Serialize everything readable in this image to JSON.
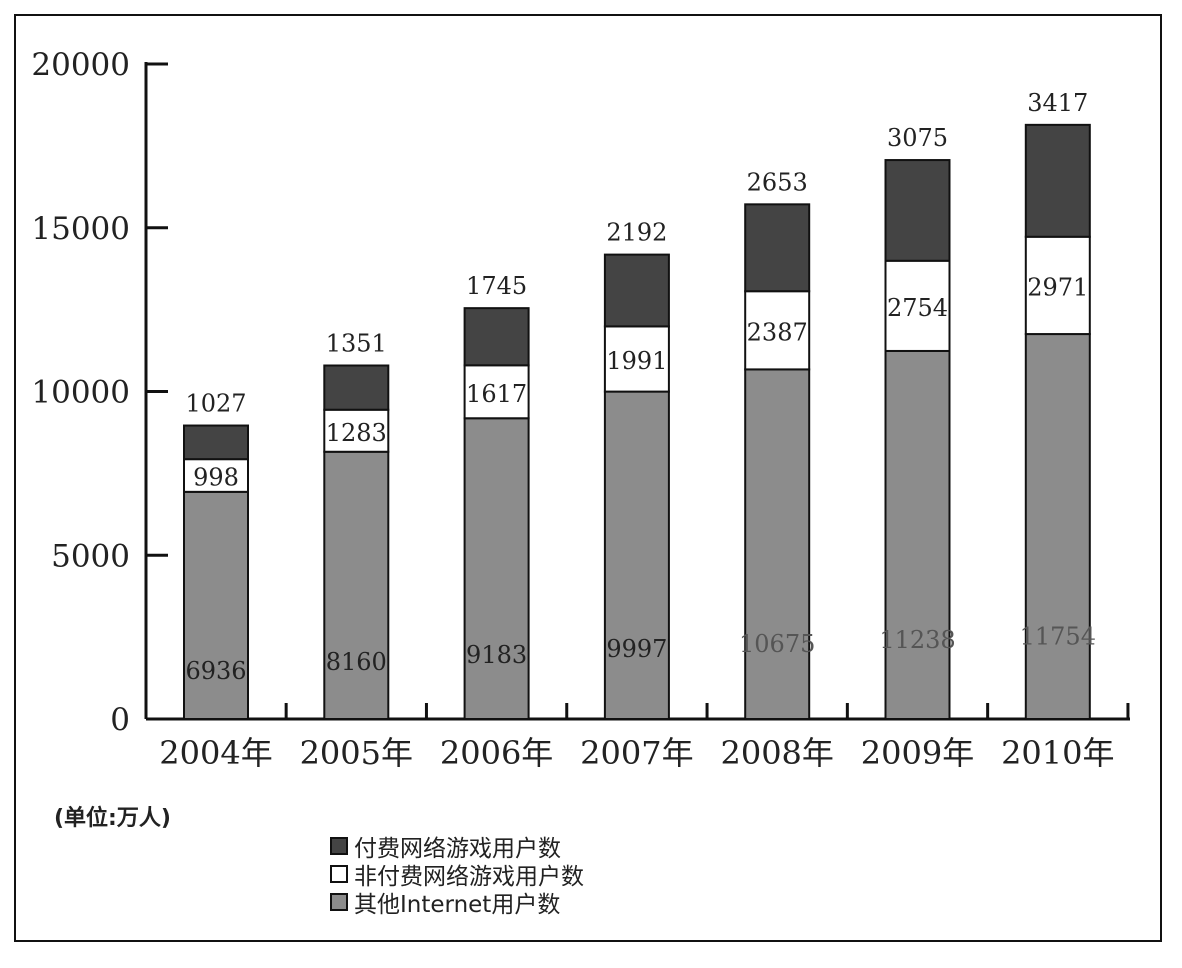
{
  "chart_data": {
    "type": "bar",
    "stacked": true,
    "categories": [
      "2004年",
      "2005年",
      "2006年",
      "2007年",
      "2008年",
      "2009年",
      "2010年"
    ],
    "series": [
      {
        "name": "其他Internet用户数",
        "values": [
          6936,
          8160,
          9183,
          9997,
          10675,
          11238,
          11754
        ],
        "color": "#8c8c8c"
      },
      {
        "name": "非付费网络游戏用户数",
        "values": [
          998,
          1283,
          1617,
          1991,
          2387,
          2754,
          2971
        ],
        "color": "#ffffff"
      },
      {
        "name": "付费网络游戏用户数",
        "values": [
          1027,
          1351,
          1745,
          2192,
          2653,
          3075,
          3417
        ],
        "color": "#444444"
      }
    ],
    "yticks": [
      "0",
      "5000",
      "10000",
      "15000",
      "20000"
    ],
    "ylim": [
      0,
      20000
    ],
    "grid": false,
    "unit_note": "(单位:万人)",
    "legend_position": "bottom"
  },
  "legend": [
    {
      "label": "付费网络游戏用户数",
      "color": "#444444"
    },
    {
      "label": "非付费网络游戏用户数",
      "color": "#ffffff"
    },
    {
      "label": "其他Internet用户数",
      "color": "#8c8c8c"
    }
  ]
}
